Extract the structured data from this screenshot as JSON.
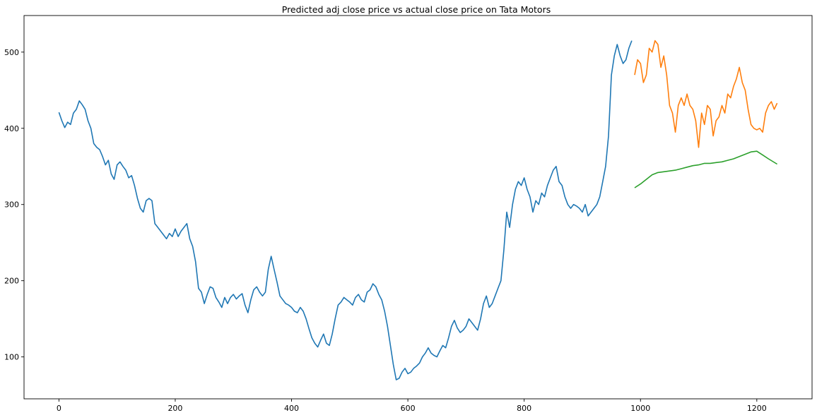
{
  "chart_data": {
    "type": "line",
    "title": "Predicted adj close price vs actual close price on Tata Motors",
    "xlabel": "",
    "ylabel": "",
    "xlim": [
      -60,
      1295
    ],
    "ylim": [
      45,
      548
    ],
    "x_ticks": [
      0,
      200,
      400,
      600,
      800,
      1000,
      1200
    ],
    "y_ticks": [
      100,
      200,
      300,
      400,
      500
    ],
    "grid": false,
    "legend": "none",
    "series": [
      {
        "color": "#1f77b4",
        "x": [
          0,
          5,
          10,
          15,
          20,
          25,
          30,
          35,
          40,
          45,
          50,
          55,
          60,
          65,
          70,
          75,
          80,
          85,
          90,
          95,
          100,
          105,
          110,
          115,
          120,
          125,
          130,
          135,
          140,
          145,
          150,
          155,
          160,
          165,
          170,
          175,
          180,
          185,
          190,
          195,
          200,
          205,
          210,
          215,
          220,
          225,
          230,
          235,
          240,
          245,
          250,
          255,
          260,
          265,
          270,
          275,
          280,
          285,
          290,
          295,
          300,
          305,
          310,
          315,
          320,
          325,
          330,
          335,
          340,
          345,
          350,
          355,
          360,
          365,
          370,
          375,
          380,
          385,
          390,
          395,
          400,
          405,
          410,
          415,
          420,
          425,
          430,
          435,
          440,
          445,
          450,
          455,
          460,
          465,
          470,
          475,
          480,
          485,
          490,
          495,
          500,
          505,
          510,
          515,
          520,
          525,
          530,
          535,
          540,
          545,
          550,
          555,
          560,
          565,
          570,
          575,
          580,
          585,
          590,
          595,
          600,
          605,
          610,
          615,
          620,
          625,
          630,
          635,
          640,
          645,
          650,
          655,
          660,
          665,
          670,
          675,
          680,
          685,
          690,
          695,
          700,
          705,
          710,
          715,
          720,
          725,
          730,
          735,
          740,
          745,
          750,
          755,
          760,
          765,
          770,
          775,
          780,
          785,
          790,
          795,
          800,
          805,
          810,
          815,
          820,
          825,
          830,
          835,
          840,
          845,
          850,
          855,
          860,
          865,
          870,
          875,
          880,
          885,
          890,
          895,
          900,
          905,
          910,
          915,
          920,
          925,
          930,
          935,
          940,
          945,
          950,
          955,
          960,
          965,
          970,
          975,
          980,
          985
        ],
        "y": [
          421,
          410,
          401,
          408,
          405,
          420,
          425,
          436,
          431,
          425,
          410,
          400,
          380,
          375,
          372,
          363,
          352,
          358,
          340,
          333,
          352,
          356,
          350,
          345,
          335,
          338,
          325,
          308,
          295,
          290,
          305,
          308,
          305,
          275,
          270,
          265,
          260,
          255,
          262,
          258,
          268,
          258,
          265,
          270,
          275,
          255,
          245,
          225,
          190,
          185,
          170,
          182,
          192,
          190,
          178,
          172,
          165,
          178,
          170,
          178,
          182,
          176,
          180,
          183,
          168,
          158,
          175,
          188,
          192,
          185,
          180,
          185,
          215,
          232,
          215,
          198,
          180,
          175,
          170,
          168,
          165,
          160,
          158,
          165,
          160,
          150,
          137,
          125,
          118,
          113,
          122,
          130,
          118,
          115,
          130,
          150,
          168,
          172,
          178,
          175,
          172,
          168,
          178,
          182,
          175,
          172,
          185,
          188,
          196,
          192,
          182,
          175,
          160,
          140,
          115,
          90,
          70,
          72,
          80,
          85,
          78,
          80,
          85,
          88,
          92,
          100,
          105,
          112,
          105,
          102,
          100,
          108,
          115,
          112,
          125,
          140,
          148,
          138,
          132,
          135,
          140,
          150,
          145,
          140,
          135,
          150,
          170,
          180,
          165,
          170,
          180,
          190,
          200,
          240,
          290,
          270,
          300,
          320,
          330,
          325,
          335,
          320,
          310,
          290,
          305,
          300,
          315,
          310,
          325,
          335,
          345,
          350,
          330,
          325,
          310,
          300,
          295,
          300,
          298,
          295,
          290,
          300,
          285,
          290,
          295,
          300,
          310,
          330,
          350,
          390,
          470,
          495,
          510,
          495,
          485,
          490,
          505,
          515
        ]
      },
      {
        "color": "#ff7f0e",
        "x": [
          990,
          995,
          1000,
          1005,
          1010,
          1015,
          1020,
          1025,
          1030,
          1035,
          1040,
          1045,
          1050,
          1055,
          1060,
          1065,
          1070,
          1075,
          1080,
          1085,
          1090,
          1095,
          1100,
          1105,
          1110,
          1115,
          1120,
          1125,
          1130,
          1135,
          1140,
          1145,
          1150,
          1155,
          1160,
          1165,
          1170,
          1175,
          1180,
          1185,
          1190,
          1195,
          1200,
          1205,
          1210,
          1215,
          1220,
          1225,
          1230,
          1235
        ],
        "y": [
          470,
          490,
          485,
          460,
          470,
          505,
          500,
          515,
          510,
          480,
          495,
          470,
          430,
          420,
          395,
          430,
          440,
          430,
          445,
          430,
          425,
          410,
          375,
          420,
          405,
          430,
          425,
          390,
          410,
          415,
          430,
          420,
          445,
          440,
          455,
          465,
          480,
          460,
          450,
          425,
          405,
          400,
          398,
          400,
          395,
          420,
          430,
          435,
          425,
          433
        ]
      },
      {
        "color": "#2ca02c",
        "x": [
          990,
          1000,
          1010,
          1020,
          1030,
          1040,
          1050,
          1060,
          1070,
          1080,
          1090,
          1100,
          1110,
          1120,
          1130,
          1140,
          1150,
          1160,
          1170,
          1180,
          1190,
          1200,
          1210,
          1220,
          1235
        ],
        "y": [
          322,
          327,
          333,
          339,
          342,
          343,
          344,
          345,
          347,
          349,
          351,
          352,
          354,
          354,
          355,
          356,
          358,
          360,
          363,
          366,
          369,
          370,
          365,
          360,
          353
        ]
      }
    ]
  }
}
